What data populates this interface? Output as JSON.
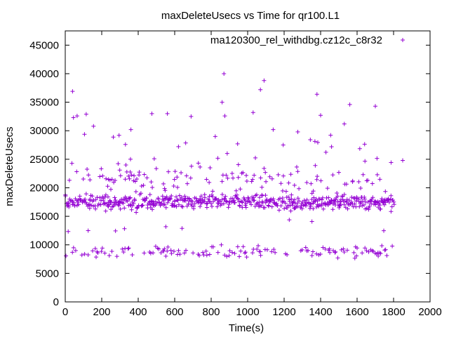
{
  "chart_data": {
    "type": "scatter",
    "title": "maxDeleteUsecs vs Time for qr100.L1",
    "xlabel": "Time(s)",
    "ylabel": "maxDeleteUsecs",
    "xlim": [
      0,
      2000
    ],
    "ylim": [
      0,
      47500
    ],
    "x_ticks": [
      "0",
      "200",
      "400",
      "600",
      "800",
      "1000",
      "1200",
      "1400",
      "1600",
      "1800",
      "2000"
    ],
    "y_ticks": [
      "0",
      "5000",
      "10000",
      "15000",
      "20000",
      "25000",
      "30000",
      "35000",
      "40000",
      "45000"
    ],
    "legend": {
      "position": "top-right"
    },
    "series": [
      {
        "name": "ma120300_rel_withdbg.cz12c_c8r32",
        "color": "#9400d3",
        "marker": "plus",
        "generation": {
          "x_range": [
            0,
            1800
          ],
          "x_step": 5,
          "bands": [
            {
              "label": "main",
              "center": 17500,
              "spread": 1500
            },
            {
              "label": "low",
              "center": 8800,
              "spread": 1300
            },
            {
              "label": "upper",
              "center": 21500,
              "spread": 2500
            }
          ]
        },
        "outliers": [
          [
            40,
            36900
          ],
          [
            45,
            32300
          ],
          [
            65,
            32600
          ],
          [
            115,
            32900
          ],
          [
            155,
            30800
          ],
          [
            295,
            29200
          ],
          [
            360,
            30200
          ],
          [
            475,
            33000
          ],
          [
            560,
            33000
          ],
          [
            690,
            32500
          ],
          [
            870,
            40000
          ],
          [
            860,
            35000
          ],
          [
            875,
            32600
          ],
          [
            1030,
            33200
          ],
          [
            1070,
            37200
          ],
          [
            1090,
            38800
          ],
          [
            1140,
            30200
          ],
          [
            1275,
            29800
          ],
          [
            1380,
            36400
          ],
          [
            1400,
            32700
          ],
          [
            1530,
            31200
          ],
          [
            1560,
            34600
          ],
          [
            1700,
            34300
          ],
          [
            330,
            27600
          ],
          [
            945,
            27700
          ],
          [
            1195,
            27500
          ],
          [
            1460,
            27200
          ],
          [
            1850,
            24800
          ]
        ]
      }
    ]
  }
}
